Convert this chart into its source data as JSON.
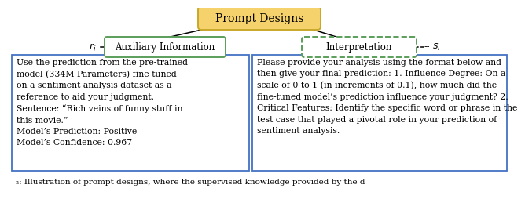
{
  "title": "Prompt Designs",
  "title_bg": "#F5D26C",
  "title_border": "#C8A82A",
  "left_header": "Auxiliary Information",
  "left_header_bg": "#FFFFFF",
  "left_header_border": "#5A9E5A",
  "right_header": "Interpretation",
  "right_header_bg": "#FFFFFF",
  "right_header_border": "#5A9E5A",
  "left_label": "$r_i$",
  "right_label": "$--s_i$",
  "left_text": "Use the prediction from the pre-trained\nmodel (334M Parameters) fine-tuned\non a sentiment analysis dataset as a\nreference to aid your judgment.\nSentence: “Rich veins of funny stuff in\nthis movie.”\nModel’s Prediction: Positive\nModel’s Confidence: 0.967",
  "right_text": "Please provide your analysis using the format below and\nthen give your final prediction: 1. Influence Degree: On a\nscale of 0 to 1 (in increments of 0.1), how much did the\nfine-tuned model’s prediction influence your judgment? 2.\nCritical Features: Identify the specific word or phrase in the\ntest case that played a pivotal role in your prediction of\nsentiment analysis.",
  "box_border": "#4472C4",
  "bg_color": "#FFFFFF",
  "caption": "3: Illustration of prompt designs, where the supervised knowledge provided by the d"
}
